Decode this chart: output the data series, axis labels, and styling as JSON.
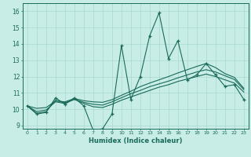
{
  "xlabel": "Humidex (Indice chaleur)",
  "background_color": "#c8ece6",
  "grid_color": "#a8d8d0",
  "line_color": "#1a6b5a",
  "xlim": [
    -0.5,
    23.5
  ],
  "ylim": [
    8.8,
    16.5
  ],
  "xticks": [
    0,
    1,
    2,
    3,
    4,
    5,
    6,
    7,
    8,
    9,
    10,
    11,
    12,
    13,
    14,
    15,
    16,
    17,
    18,
    19,
    20,
    21,
    22,
    23
  ],
  "yticks": [
    9,
    10,
    11,
    12,
    13,
    14,
    15,
    16
  ],
  "series0": [
    10.2,
    9.7,
    9.8,
    10.7,
    10.3,
    10.7,
    10.2,
    8.7,
    8.8,
    9.7,
    13.9,
    10.6,
    12.0,
    14.5,
    15.9,
    13.1,
    14.2,
    11.8,
    12.1,
    12.8,
    12.1,
    11.4,
    11.5,
    10.6
  ],
  "series1": [
    10.2,
    9.75,
    9.85,
    10.55,
    10.4,
    10.6,
    10.35,
    10.15,
    10.1,
    10.3,
    10.55,
    10.75,
    10.95,
    11.15,
    11.35,
    11.5,
    11.7,
    11.85,
    12.0,
    12.15,
    12.0,
    11.8,
    11.6,
    11.05
  ],
  "series2": [
    10.2,
    9.85,
    9.95,
    10.45,
    10.35,
    10.6,
    10.42,
    10.3,
    10.25,
    10.45,
    10.7,
    10.95,
    11.15,
    11.38,
    11.55,
    11.72,
    11.92,
    12.1,
    12.28,
    12.42,
    12.28,
    12.05,
    11.82,
    11.2
  ],
  "series3": [
    10.2,
    10.05,
    10.1,
    10.5,
    10.45,
    10.65,
    10.52,
    10.45,
    10.42,
    10.58,
    10.85,
    11.1,
    11.38,
    11.6,
    11.8,
    12.0,
    12.22,
    12.42,
    12.62,
    12.8,
    12.55,
    12.18,
    11.95,
    11.28
  ]
}
